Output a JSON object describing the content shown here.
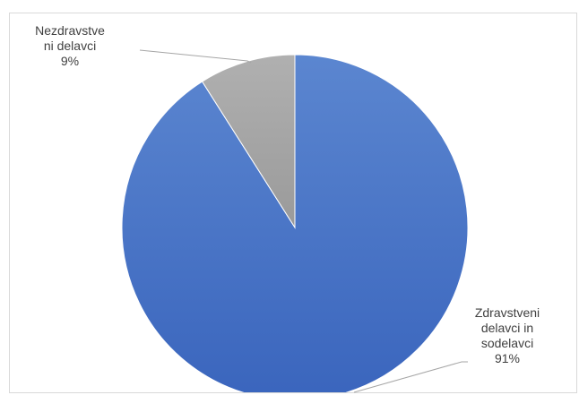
{
  "chart_data": {
    "type": "pie",
    "title": "",
    "legend": "none",
    "start_angle_deg": 0,
    "direction": "clockwise",
    "slices": [
      {
        "label_lines": [
          "Zdravstveni",
          "delavci in",
          "sodelavci"
        ],
        "percent_label": "91%",
        "value": 91,
        "color": "#4472c4"
      },
      {
        "label_lines": [
          "Nezdravstve",
          "ni delavci"
        ],
        "percent_label": "9%",
        "value": 9,
        "color": "#a5a5a5"
      }
    ]
  }
}
